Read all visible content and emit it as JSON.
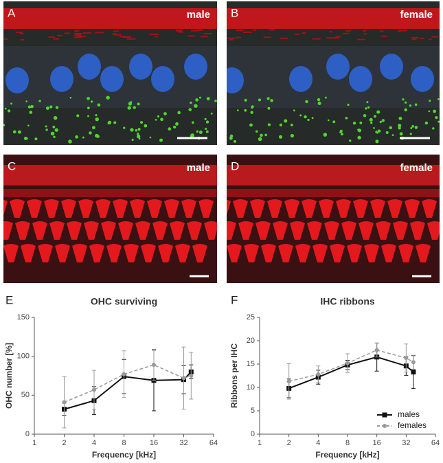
{
  "panels": [
    {
      "letter": "A",
      "label": "male"
    },
    {
      "letter": "B",
      "label": "female"
    },
    {
      "letter": "C",
      "label": "male"
    },
    {
      "letter": "D",
      "label": "female"
    }
  ],
  "chart_data": [
    {
      "letter": "E",
      "type": "line",
      "title": "OHC surviving",
      "x_label": "Frequency [kHz]",
      "y_label": "OHC number [%]",
      "x": [
        2,
        4,
        8,
        16,
        32,
        38
      ],
      "xscale": "log",
      "xlim": [
        1,
        64
      ],
      "xticks": [
        1,
        2,
        4,
        8,
        16,
        32,
        64
      ],
      "ylim": [
        0,
        150
      ],
      "yticks": [
        0,
        50,
        100,
        150
      ],
      "legend": false,
      "series": [
        {
          "color": "#111111",
          "dashed": false,
          "marker": "square",
          "values": [
            32,
            43,
            74,
            69,
            70,
            80
          ],
          "errors": [
            8,
            18,
            22,
            39,
            18,
            9
          ]
        },
        {
          "color": "#9a9a9a",
          "dashed": true,
          "marker": "circle",
          "values": [
            41,
            57,
            77,
            89,
            72,
            75
          ],
          "errors": [
            33,
            25,
            30,
            20,
            40,
            30
          ]
        }
      ]
    },
    {
      "letter": "F",
      "type": "line",
      "title": "IHC ribbons",
      "x_label": "Frequency [kHz]",
      "y_label": "Ribbons per IHC",
      "x": [
        2,
        4,
        8,
        16,
        32,
        38
      ],
      "xscale": "log",
      "xlim": [
        1,
        64
      ],
      "xticks": [
        1,
        2,
        4,
        8,
        16,
        32,
        64
      ],
      "ylim": [
        0,
        25
      ],
      "yticks": [
        0,
        5,
        10,
        15,
        20,
        25
      ],
      "legend": "lower right",
      "series": [
        {
          "name": "males",
          "color": "#111111",
          "dashed": false,
          "marker": "square",
          "values": [
            9.8,
            12.2,
            14.8,
            16.5,
            14.6,
            13.3
          ],
          "errors": [
            2,
            1.5,
            1,
            3,
            2,
            3.5
          ]
        },
        {
          "name": "females",
          "color": "#9a9a9a",
          "dashed": true,
          "marker": "circle",
          "values": [
            11.3,
            12.8,
            15.2,
            18,
            16.3,
            15.4
          ],
          "errors": [
            3.8,
            1.8,
            2,
            1.5,
            3,
            1.5
          ]
        }
      ]
    }
  ]
}
